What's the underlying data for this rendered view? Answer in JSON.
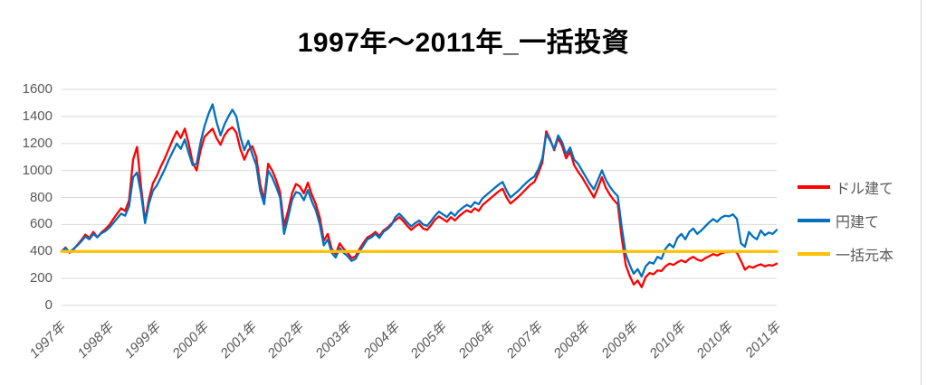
{
  "chart_data": {
    "type": "line",
    "title": "1997年〜2011年_一括投資",
    "xlabel": "",
    "ylabel": "",
    "ylim": [
      0,
      1600
    ],
    "y_ticks": [
      0,
      200,
      400,
      600,
      800,
      1000,
      1200,
      1400,
      1600
    ],
    "x_tick_labels": [
      "1997年",
      "1998年",
      "1999年",
      "2000年",
      "2001年",
      "2002年",
      "2003年",
      "2004年",
      "2005年",
      "2006年",
      "2007年",
      "2008年",
      "2009年",
      "2010年",
      "2010年",
      "2011年"
    ],
    "grid": "horizontal gridlines on",
    "legend_position": "right",
    "colors": {
      "dollar_series": "#FF0000",
      "yen_series": "#0070C0",
      "principal_series": "#FFC000",
      "gridline": "#D9D9D9",
      "axis_text": "#595959",
      "title_text": "#000000",
      "background": "#FFFFFF"
    },
    "series": [
      {
        "name": "ドル建て",
        "color": "#FF0000",
        "values": [
          400,
          430,
          390,
          415,
          450,
          485,
          525,
          500,
          545,
          505,
          540,
          565,
          595,
          640,
          680,
          720,
          700,
          780,
          1080,
          1175,
          880,
          625,
          790,
          905,
          960,
          1030,
          1090,
          1160,
          1230,
          1290,
          1240,
          1310,
          1200,
          1060,
          1000,
          1150,
          1250,
          1280,
          1310,
          1240,
          1190,
          1260,
          1300,
          1320,
          1280,
          1160,
          1080,
          1150,
          1180,
          1100,
          900,
          780,
          1050,
          1000,
          930,
          840,
          590,
          700,
          830,
          900,
          880,
          830,
          910,
          820,
          750,
          650,
          480,
          530,
          420,
          380,
          460,
          420,
          390,
          350,
          365,
          420,
          465,
          505,
          520,
          545,
          515,
          555,
          575,
          605,
          630,
          655,
          625,
          590,
          560,
          585,
          605,
          570,
          560,
          595,
          635,
          660,
          640,
          620,
          655,
          630,
          660,
          685,
          705,
          690,
          720,
          700,
          745,
          770,
          795,
          820,
          845,
          865,
          800,
          755,
          780,
          805,
          835,
          865,
          895,
          915,
          980,
          1060,
          1290,
          1230,
          1150,
          1240,
          1180,
          1090,
          1140,
          1040,
          990,
          950,
          900,
          850,
          800,
          870,
          950,
          870,
          820,
          780,
          750,
          500,
          300,
          220,
          155,
          185,
          135,
          210,
          240,
          230,
          260,
          255,
          290,
          310,
          300,
          320,
          335,
          320,
          345,
          360,
          340,
          330,
          350,
          365,
          380,
          370,
          385,
          395,
          395,
          405,
          390,
          330,
          265,
          290,
          280,
          295,
          305,
          290,
          300,
          295,
          310
        ]
      },
      {
        "name": "円建て",
        "color": "#0070C0",
        "values": [
          400,
          425,
          395,
          420,
          445,
          475,
          510,
          490,
          530,
          505,
          535,
          550,
          575,
          610,
          645,
          680,
          665,
          735,
          950,
          985,
          830,
          610,
          755,
          850,
          890,
          950,
          1010,
          1080,
          1140,
          1200,
          1160,
          1230,
          1130,
          1040,
          1050,
          1210,
          1330,
          1420,
          1490,
          1360,
          1260,
          1340,
          1400,
          1450,
          1400,
          1250,
          1150,
          1220,
          1120,
          1040,
          850,
          750,
          1000,
          950,
          880,
          800,
          530,
          650,
          780,
          840,
          830,
          780,
          855,
          770,
          705,
          600,
          445,
          490,
          390,
          355,
          425,
          390,
          365,
          330,
          345,
          400,
          445,
          490,
          505,
          530,
          500,
          545,
          565,
          595,
          655,
          680,
          650,
          615,
          585,
          610,
          630,
          600,
          590,
          625,
          665,
          695,
          675,
          655,
          690,
          665,
          700,
          725,
          745,
          730,
          765,
          750,
          795,
          820,
          845,
          870,
          895,
          915,
          850,
          800,
          825,
          850,
          880,
          910,
          935,
          955,
          1010,
          1090,
          1270,
          1220,
          1160,
          1260,
          1210,
          1120,
          1170,
          1080,
          1050,
          1000,
          950,
          900,
          860,
          930,
          1000,
          930,
          880,
          840,
          810,
          580,
          380,
          300,
          235,
          270,
          215,
          290,
          320,
          310,
          360,
          345,
          420,
          455,
          430,
          500,
          530,
          490,
          545,
          570,
          530,
          555,
          585,
          615,
          640,
          620,
          650,
          665,
          660,
          675,
          640,
          460,
          435,
          545,
          510,
          490,
          555,
          520,
          540,
          530,
          560
        ]
      },
      {
        "name": "一括元本",
        "color": "#FFC000",
        "constant": 400
      }
    ]
  }
}
